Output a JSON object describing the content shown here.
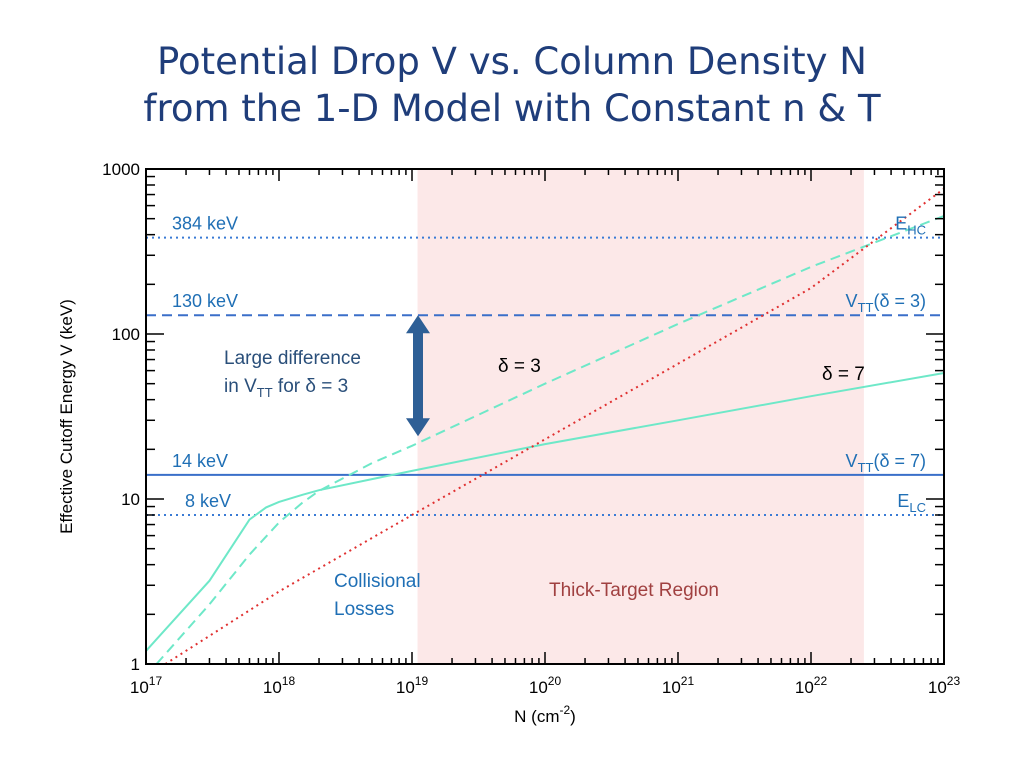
{
  "title": {
    "line1": "Potential Drop V vs. Column Density N",
    "line2": "from the 1-D Model with Constant n & T"
  },
  "chart_data": {
    "type": "line",
    "xscale": "log",
    "yscale": "log",
    "xlim": [
      1e+17,
      1e+23
    ],
    "ylim": [
      1,
      1000
    ],
    "xlabel": "N (cm",
    "xlabel_exp": "-2",
    "xlabel_close": ")",
    "ylabel": "Effective Cutoff Energy V (keV)",
    "x_ticks": [
      {
        "base": "10",
        "exp": "17",
        "value": 1e+17
      },
      {
        "base": "10",
        "exp": "18",
        "value": 1e+18
      },
      {
        "base": "10",
        "exp": "19",
        "value": 1e+19
      },
      {
        "base": "10",
        "exp": "20",
        "value": 1e+20
      },
      {
        "base": "10",
        "exp": "21",
        "value": 1e+21
      },
      {
        "base": "10",
        "exp": "22",
        "value": 1e+22
      },
      {
        "base": "10",
        "exp": "23",
        "value": 1e+23
      }
    ],
    "y_ticks": [
      {
        "label": "1",
        "value": 1
      },
      {
        "label": "10",
        "value": 10
      },
      {
        "label": "100",
        "value": 100
      },
      {
        "label": "1000",
        "value": 1000
      }
    ],
    "shaded_region": {
      "label": "Thick-Target Region",
      "x": [
        1.1e+19,
        2.5e+22
      ],
      "color": "#fce8e8",
      "text_color": "#a04040"
    },
    "hlines": [
      {
        "name": "E_HC",
        "y": 384,
        "label": "384 keV",
        "right_main": "E",
        "right_sub": "HC",
        "style": "dotted",
        "color": "#3a7bd5"
      },
      {
        "name": "V_TT delta 3",
        "y": 130,
        "label": "130 keV",
        "right_main": "V",
        "right_sub": "TT",
        "right_tail": "(δ = 3)",
        "style": "dashed",
        "color": "#3a6fc9"
      },
      {
        "name": "V_TT delta 7",
        "y": 14,
        "label": "14 keV",
        "right_main": "V",
        "right_sub": "TT",
        "right_tail": "(δ = 7)",
        "style": "solid",
        "color": "#3a6fc9"
      },
      {
        "name": "E_LC",
        "y": 8,
        "label": "8 keV",
        "right_main": "E",
        "right_sub": "LC",
        "style": "dotted",
        "color": "#3a7bd5"
      }
    ],
    "series": [
      {
        "name": "δ = 7",
        "style": "solid",
        "color": "#6ee8c8",
        "x": [
          1e+17,
          3e+17,
          6e+17,
          8e+17,
          1e+18,
          1.5e+18,
          2e+18,
          5e+18,
          1e+19,
          1e+20,
          1e+21,
          1e+22,
          1e+23
        ],
        "y": [
          1.2,
          3.2,
          7.5,
          8.9,
          9.6,
          10.6,
          11.3,
          13.2,
          14.8,
          21.5,
          30,
          42,
          58
        ]
      },
      {
        "name": "δ = 3",
        "style": "dashed",
        "color": "#6ee8c8",
        "x": [
          1.2e+17,
          3e+17,
          6e+17,
          1e+18,
          1.5e+18,
          2e+18,
          5e+18,
          1e+19,
          1e+20,
          1e+21,
          1e+22,
          1e+23
        ],
        "y": [
          1.0,
          2.3,
          4.6,
          7.2,
          9.5,
          11.2,
          16.5,
          21,
          50,
          115,
          255,
          520
        ]
      },
      {
        "name": "thick-target",
        "style": "dotted",
        "color": "#e03030",
        "x": [
          1.4e+17,
          1e+18,
          1e+19,
          1e+20,
          1e+21,
          1e+22,
          1e+23
        ],
        "y": [
          1.0,
          2.75,
          8,
          23,
          66,
          190,
          760
        ]
      }
    ],
    "annotations": {
      "delta3": "δ = 3",
      "delta7": "δ = 7",
      "large_diff_line1": "Large difference",
      "large_diff_pre": "in V",
      "large_diff_sub": "TT",
      "large_diff_post": " for δ = 3",
      "collisional_line1": "Collisional",
      "collisional_line2": "Losses"
    },
    "arrow": {
      "from": 24,
      "to": 130,
      "color": "#2e5f96"
    }
  }
}
